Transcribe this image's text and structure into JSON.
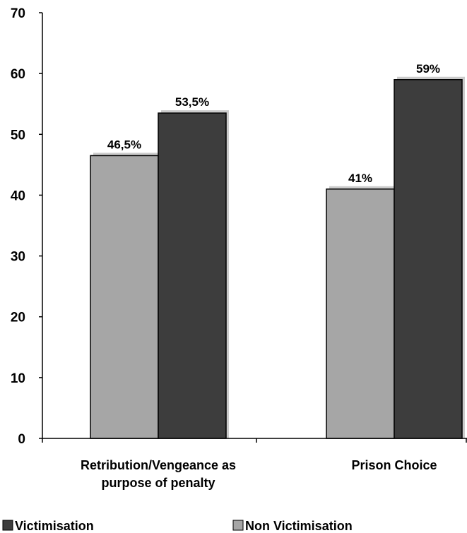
{
  "chart_data": {
    "type": "bar",
    "categories": [
      "Retribution/Vengeance as purpose of penalty",
      "Prison Choice"
    ],
    "category_lines": [
      [
        "Retribution/Vengeance as",
        "purpose of penalty"
      ],
      [
        "Prison Choice"
      ]
    ],
    "series": [
      {
        "name": "Non Victimisation",
        "values": [
          46.5,
          41
        ],
        "labels": [
          "46,5%",
          "41%"
        ],
        "color": "#a6a6a6"
      },
      {
        "name": "Victimisation",
        "values": [
          53.5,
          59
        ],
        "labels": [
          "53,5%",
          "59%"
        ],
        "color": "#3d3d3d"
      }
    ],
    "legend_order": [
      "Victimisation",
      "Non Victimisation"
    ],
    "yticks": [
      0,
      10,
      20,
      30,
      40,
      50,
      60,
      70
    ],
    "ylim": [
      0,
      70
    ],
    "grid": false,
    "legend_position": "bottom"
  }
}
